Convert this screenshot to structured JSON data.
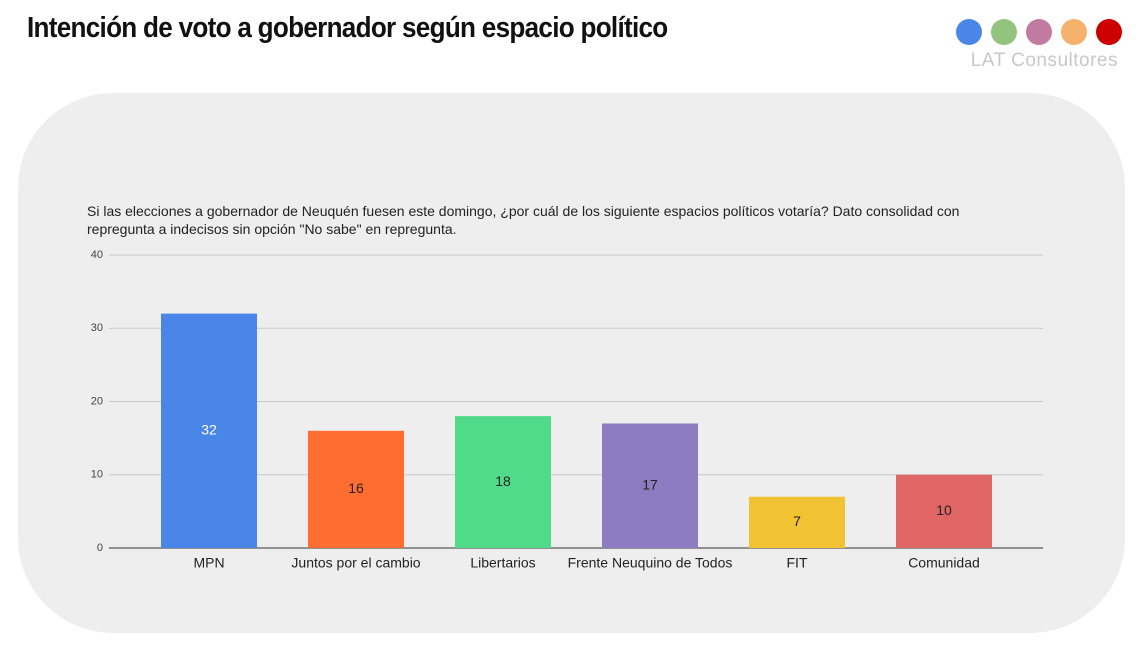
{
  "header": {
    "title": "Intención de voto a gobernador según espacio político",
    "brand": "LAT Consultores"
  },
  "chart_data": {
    "type": "bar",
    "subtitle": "Si las elecciones a gobernador de Neuquén fuesen este domingo, ¿por cuál de los siguiente espacios políticos votaría? Dato consolidad con repregunta a indecisos sin opción \"No sabe\" en repregunta.",
    "categories": [
      "MPN",
      "Juntos por el cambio",
      "Libertarios",
      "Frente Neuquino de Todos",
      "FIT",
      "Comunidad"
    ],
    "values": [
      32,
      16,
      18,
      17,
      7,
      10
    ],
    "colors": [
      "#4a86e8",
      "#ff6d31",
      "#4fdb87",
      "#8e7cc3",
      "#f1c232",
      "#e06666"
    ],
    "ylim": [
      0,
      40
    ],
    "yticks": [
      0,
      10,
      20,
      30,
      40
    ],
    "grid": true
  }
}
